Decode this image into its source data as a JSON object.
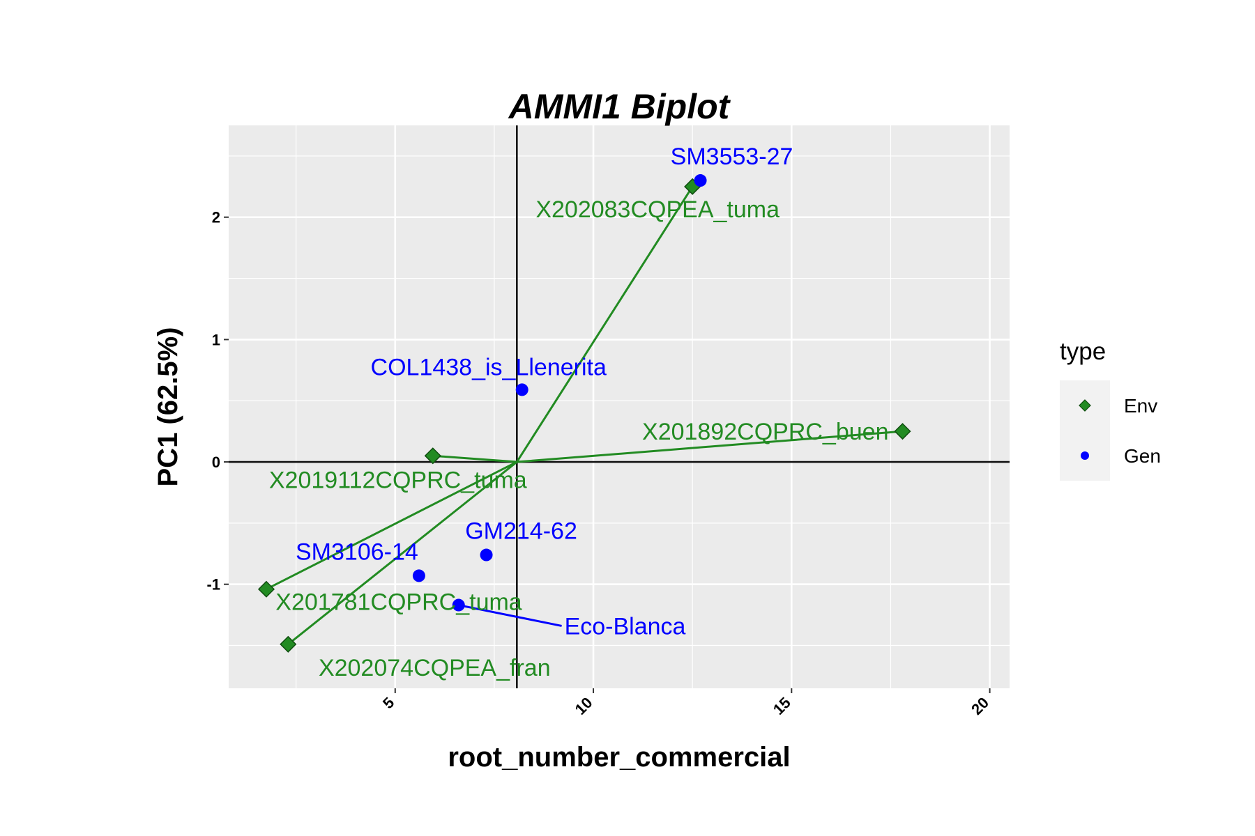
{
  "chart_data": {
    "type": "scatter",
    "title": "AMMI1 Biplot",
    "xlabel": "root_number_commercial",
    "ylabel": "PC1 (62.5%)",
    "xlim": [
      0.8,
      20.5
    ],
    "ylim": [
      -1.85,
      2.75
    ],
    "x_ticks": [
      5,
      10,
      15,
      20
    ],
    "y_ticks": [
      -1,
      0,
      1,
      2
    ],
    "grid": true,
    "origin": {
      "x": 8.07,
      "y": 0
    },
    "legend": {
      "title": "type",
      "position": "right",
      "entries": [
        {
          "name": "Env",
          "shape": "diamond",
          "color": "#228B22"
        },
        {
          "name": "Gen",
          "shape": "circle",
          "color": "#0000FF"
        }
      ]
    },
    "colors": {
      "env": "#228B22",
      "gen": "#0000FF",
      "panel": "#EBEBEB",
      "grid": "#FFFFFF"
    },
    "series": [
      {
        "name": "Env",
        "points": [
          {
            "label": "X202083CQPEA_tuma",
            "x": 12.5,
            "y": 2.25
          },
          {
            "label": "X201892CQPRC_buen",
            "x": 17.8,
            "y": 0.25
          },
          {
            "label": "X2019112CQPRC_tuma",
            "x": 5.95,
            "y": 0.05
          },
          {
            "label": "X201781CQPRC_tuma",
            "x": 1.75,
            "y": -1.04
          },
          {
            "label": "X202074CQPEA_fran",
            "x": 2.3,
            "y": -1.49
          }
        ]
      },
      {
        "name": "Gen",
        "points": [
          {
            "label": "SM3553-27",
            "x": 12.7,
            "y": 2.3
          },
          {
            "label": "COL1438_is_Llenerita",
            "x": 8.2,
            "y": 0.59
          },
          {
            "label": "GM214-62",
            "x": 7.3,
            "y": -0.76
          },
          {
            "label": "SM3106-14",
            "x": 5.6,
            "y": -0.93
          },
          {
            "label": "Eco-Blanca",
            "x": 6.6,
            "y": -1.17
          }
        ]
      }
    ]
  }
}
